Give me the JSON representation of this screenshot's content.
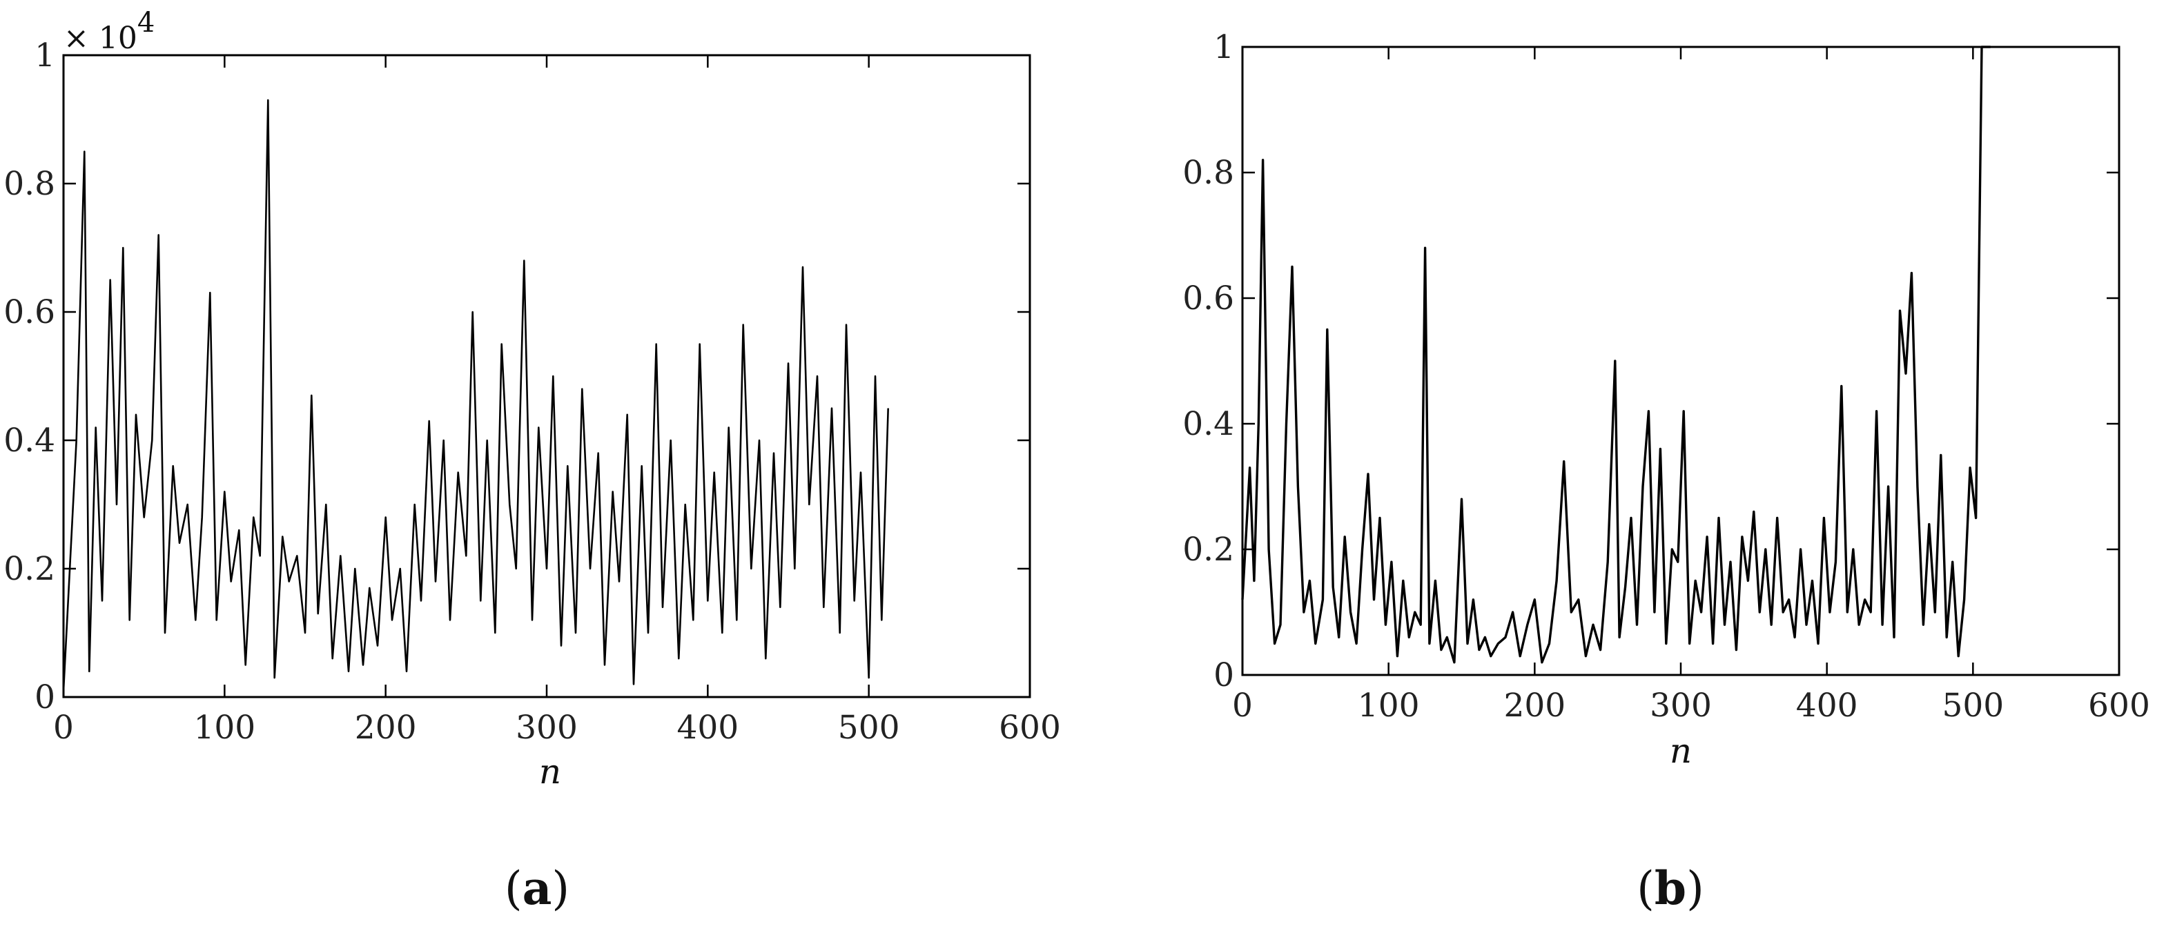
{
  "chart_data": [
    {
      "type": "line",
      "panel_label": "a",
      "xlabel": "n",
      "ylabel": "",
      "y_multiplier_base": "× 10",
      "y_multiplier_exponent": "4",
      "xlim": [
        0,
        600
      ],
      "ylim": [
        0,
        1
      ],
      "x_ticks": [
        "0",
        "100",
        "200",
        "300",
        "400",
        "500",
        "600"
      ],
      "y_ticks": [
        "0",
        "0.2",
        "0.4",
        "0.6",
        "0.8",
        "1"
      ],
      "grid": false,
      "line_color": "#000000",
      "series": [
        {
          "x": [
            0,
            8,
            13,
            16,
            20,
            24,
            29,
            33,
            37,
            41,
            45,
            50,
            55,
            59,
            63,
            68,
            72,
            77,
            82,
            86,
            91,
            95,
            100,
            104,
            109,
            113,
            118,
            122,
            127,
            131,
            136,
            140,
            145,
            150,
            154,
            158,
            163,
            167,
            172,
            177,
            181,
            186,
            190,
            195,
            200,
            204,
            209,
            213,
            218,
            222,
            227,
            231,
            236,
            240,
            245,
            250,
            254,
            259,
            263,
            268,
            272,
            277,
            281,
            286,
            291,
            295,
            300,
            304,
            309,
            313,
            318,
            322,
            327,
            332,
            336,
            341,
            345,
            350,
            354,
            359,
            363,
            368,
            372,
            377,
            382,
            386,
            391,
            395,
            400,
            404,
            409,
            413,
            418,
            422,
            427,
            432,
            436,
            441,
            445,
            450,
            454,
            459,
            463,
            468,
            472,
            477,
            482,
            486,
            491,
            495,
            500,
            504,
            508,
            512
          ],
          "values": [
            0.01,
            0.4,
            0.85,
            0.04,
            0.42,
            0.15,
            0.65,
            0.3,
            0.7,
            0.12,
            0.44,
            0.28,
            0.4,
            0.72,
            0.1,
            0.36,
            0.24,
            0.3,
            0.12,
            0.28,
            0.63,
            0.12,
            0.32,
            0.18,
            0.26,
            0.05,
            0.28,
            0.22,
            0.93,
            0.03,
            0.25,
            0.18,
            0.22,
            0.1,
            0.47,
            0.13,
            0.3,
            0.06,
            0.22,
            0.04,
            0.2,
            0.05,
            0.17,
            0.08,
            0.28,
            0.12,
            0.2,
            0.04,
            0.3,
            0.15,
            0.43,
            0.18,
            0.4,
            0.12,
            0.35,
            0.22,
            0.6,
            0.15,
            0.4,
            0.1,
            0.55,
            0.3,
            0.2,
            0.68,
            0.12,
            0.42,
            0.2,
            0.5,
            0.08,
            0.36,
            0.1,
            0.48,
            0.2,
            0.38,
            0.05,
            0.32,
            0.18,
            0.44,
            0.02,
            0.36,
            0.1,
            0.55,
            0.14,
            0.4,
            0.06,
            0.3,
            0.12,
            0.55,
            0.15,
            0.35,
            0.1,
            0.42,
            0.12,
            0.58,
            0.2,
            0.4,
            0.06,
            0.38,
            0.14,
            0.52,
            0.2,
            0.67,
            0.3,
            0.5,
            0.14,
            0.45,
            0.1,
            0.58,
            0.15,
            0.35,
            0.03,
            0.5,
            0.12,
            0.45
          ]
        }
      ]
    },
    {
      "type": "line",
      "panel_label": "b",
      "xlabel": "n",
      "ylabel": "",
      "xlim": [
        0,
        600
      ],
      "ylim": [
        0,
        1
      ],
      "x_ticks": [
        "0",
        "100",
        "200",
        "300",
        "400",
        "500",
        "600"
      ],
      "y_ticks": [
        "0",
        "0.2",
        "0.4",
        "0.6",
        "0.8",
        "1"
      ],
      "grid": false,
      "line_color": "#000000",
      "series": [
        {
          "x": [
            0,
            5,
            8,
            11,
            14,
            18,
            22,
            26,
            30,
            34,
            38,
            42,
            46,
            50,
            55,
            58,
            62,
            66,
            70,
            74,
            78,
            82,
            86,
            90,
            94,
            98,
            102,
            106,
            110,
            114,
            118,
            122,
            125,
            128,
            132,
            136,
            140,
            145,
            150,
            154,
            158,
            162,
            166,
            170,
            175,
            180,
            185,
            190,
            195,
            200,
            205,
            210,
            215,
            220,
            225,
            230,
            235,
            240,
            245,
            250,
            255,
            258,
            262,
            266,
            270,
            274,
            278,
            282,
            286,
            290,
            294,
            298,
            302,
            306,
            310,
            314,
            318,
            322,
            326,
            330,
            334,
            338,
            342,
            346,
            350,
            354,
            358,
            362,
            366,
            370,
            374,
            378,
            382,
            386,
            390,
            394,
            398,
            402,
            406,
            410,
            414,
            418,
            422,
            426,
            430,
            434,
            438,
            442,
            446,
            450,
            454,
            458,
            462,
            466,
            470,
            474,
            478,
            482,
            486,
            490,
            494,
            498,
            502,
            506,
            510,
            512
          ],
          "values": [
            0.12,
            0.33,
            0.15,
            0.4,
            0.82,
            0.2,
            0.05,
            0.08,
            0.4,
            0.65,
            0.3,
            0.1,
            0.15,
            0.05,
            0.12,
            0.55,
            0.14,
            0.06,
            0.22,
            0.1,
            0.05,
            0.2,
            0.32,
            0.12,
            0.25,
            0.08,
            0.18,
            0.03,
            0.15,
            0.06,
            0.1,
            0.08,
            0.68,
            0.05,
            0.15,
            0.04,
            0.06,
            0.02,
            0.28,
            0.05,
            0.12,
            0.04,
            0.06,
            0.03,
            0.05,
            0.06,
            0.1,
            0.03,
            0.08,
            0.12,
            0.02,
            0.05,
            0.15,
            0.34,
            0.1,
            0.12,
            0.03,
            0.08,
            0.04,
            0.18,
            0.5,
            0.06,
            0.14,
            0.25,
            0.08,
            0.3,
            0.42,
            0.1,
            0.36,
            0.05,
            0.2,
            0.18,
            0.42,
            0.05,
            0.15,
            0.1,
            0.22,
            0.05,
            0.25,
            0.08,
            0.18,
            0.04,
            0.22,
            0.15,
            0.26,
            0.1,
            0.2,
            0.08,
            0.25,
            0.1,
            0.12,
            0.06,
            0.2,
            0.08,
            0.15,
            0.05,
            0.25,
            0.1,
            0.18,
            0.46,
            0.1,
            0.2,
            0.08,
            0.12,
            0.1,
            0.42,
            0.08,
            0.3,
            0.06,
            0.58,
            0.48,
            0.64,
            0.3,
            0.08,
            0.24,
            0.1,
            0.35,
            0.06,
            0.18,
            0.03,
            0.12,
            0.33,
            0.25,
            1.0,
            1.0,
            1.0
          ]
        }
      ]
    }
  ],
  "captions": {
    "a": "a",
    "b": "b"
  }
}
